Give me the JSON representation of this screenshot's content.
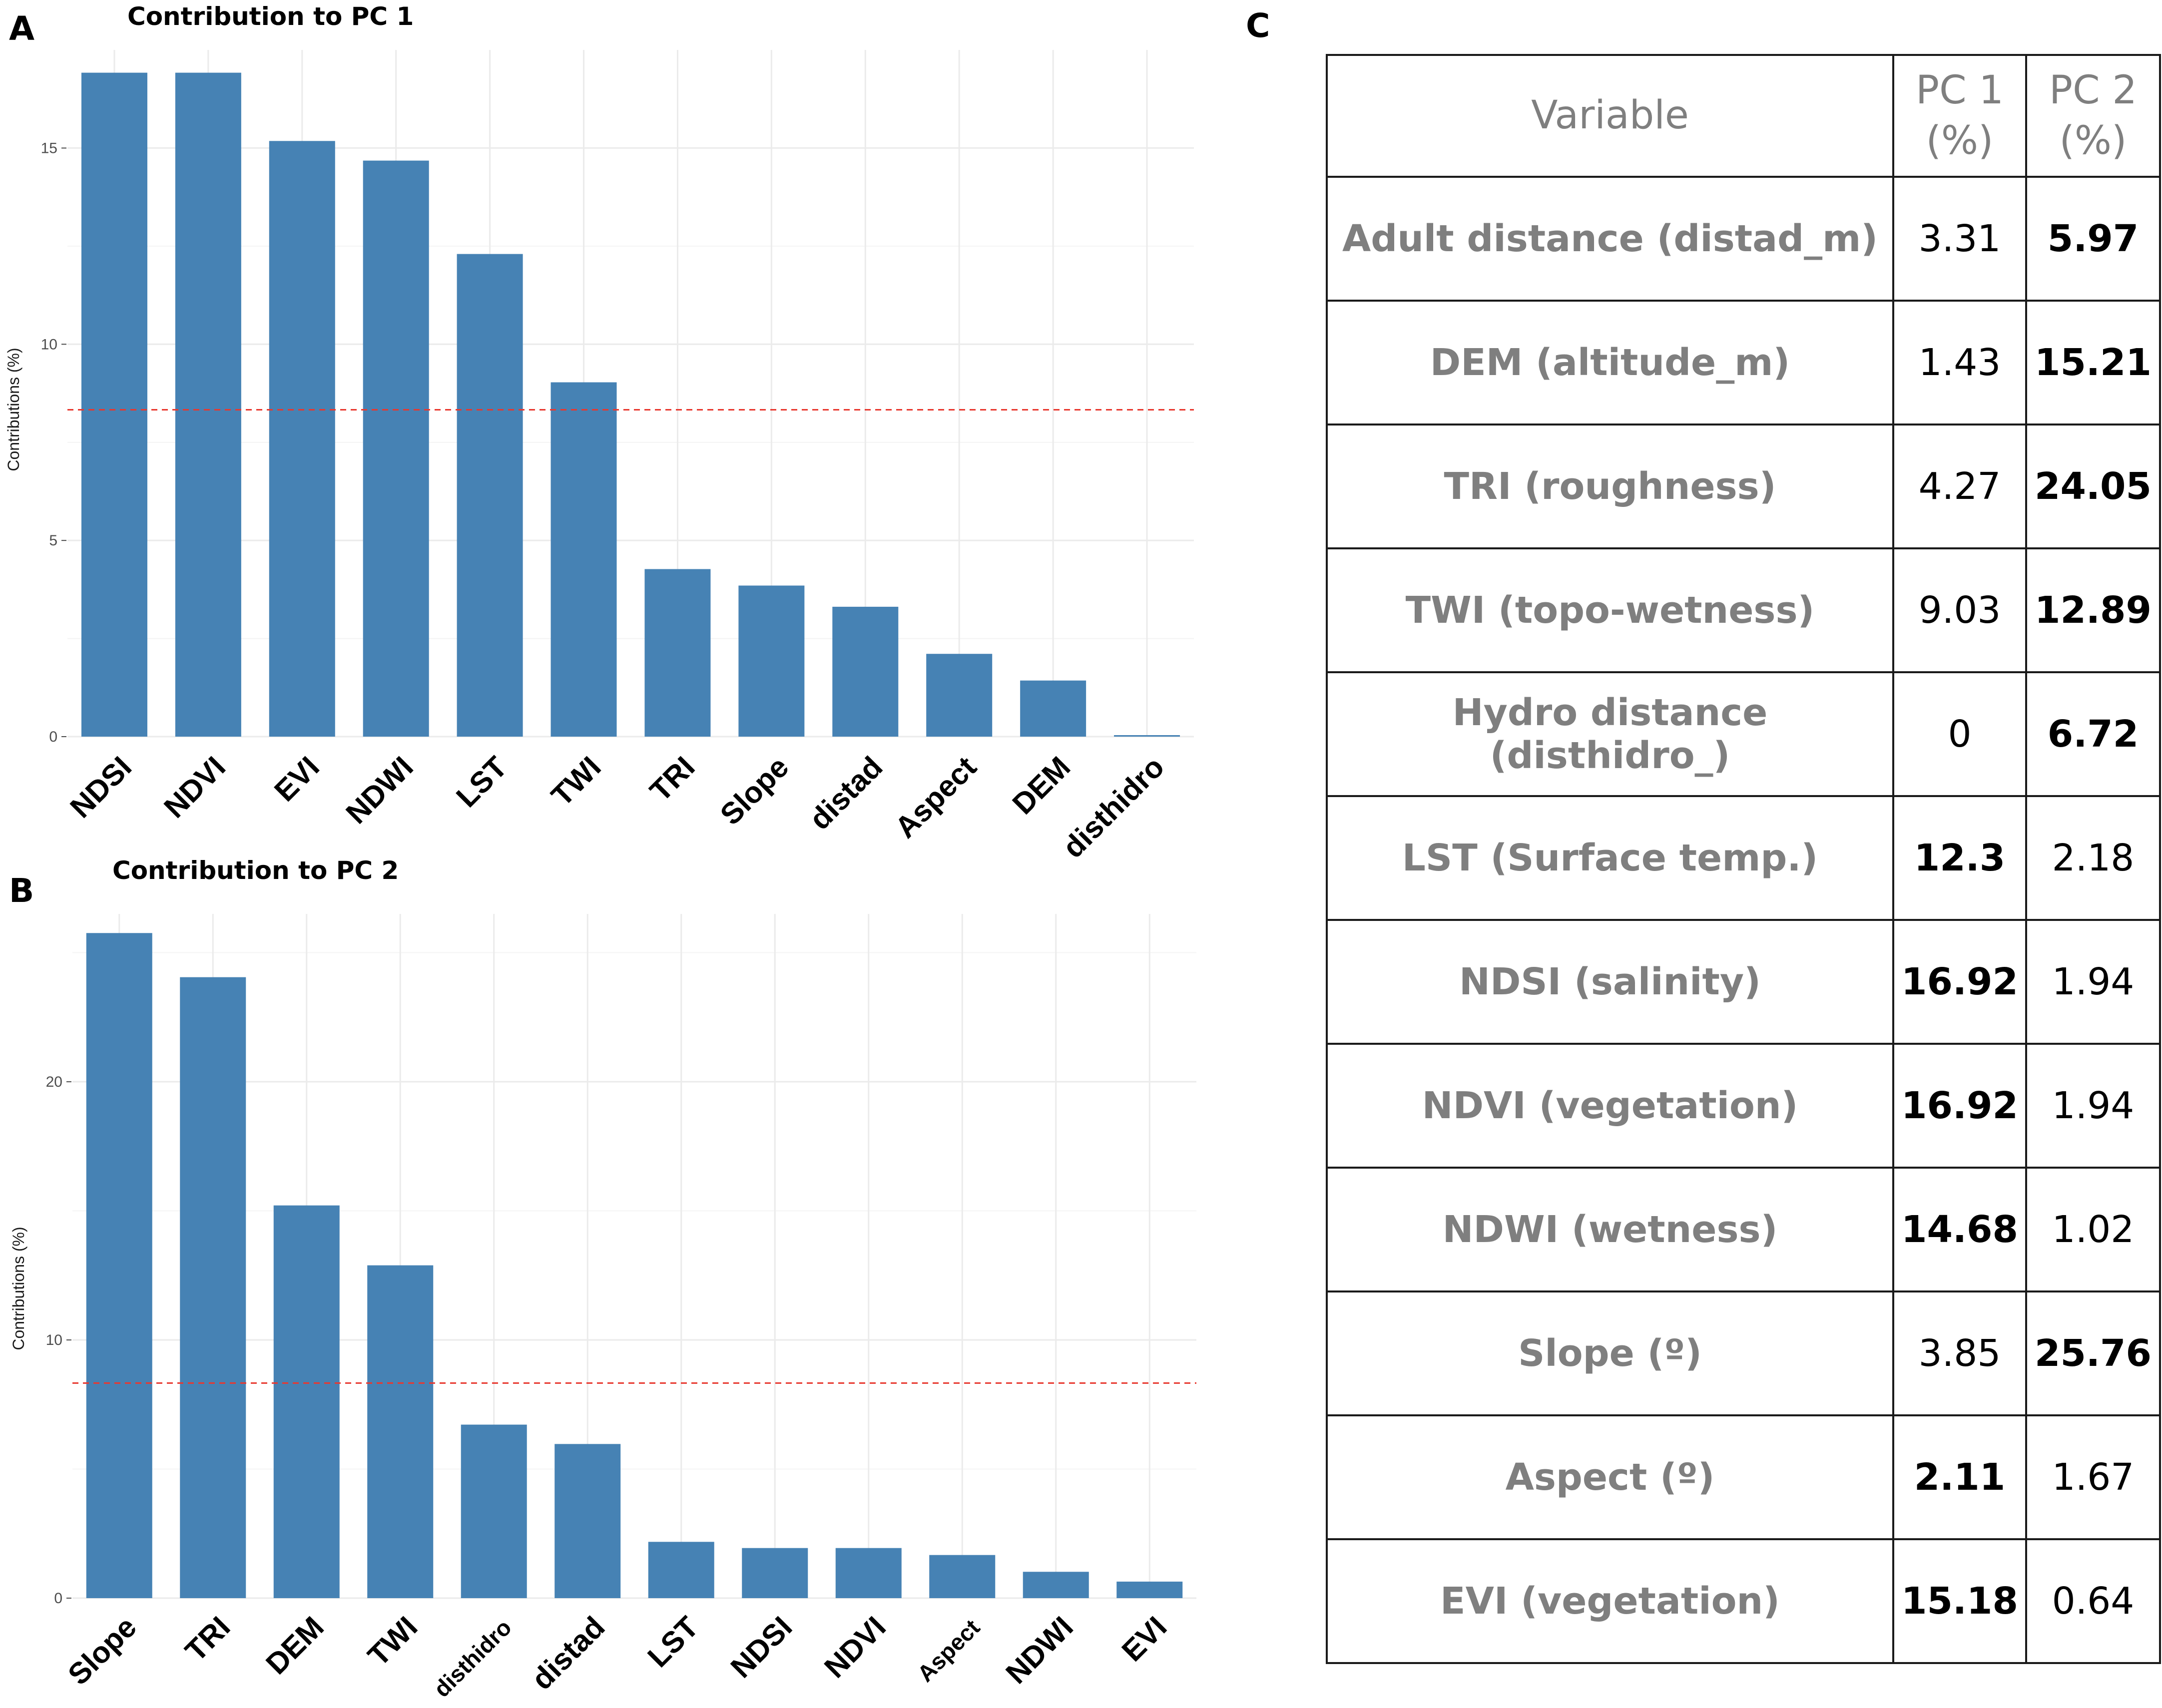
{
  "panels": {
    "a_label": "A",
    "b_label": "B",
    "c_label": "C"
  },
  "colors": {
    "bar": "#4682b4",
    "reference_line": "#e8382f"
  },
  "chart_data": [
    {
      "type": "bar",
      "title": "Contribution to PC 1",
      "xlabel": "",
      "ylabel": "Contributions (%)",
      "categories": [
        "NDSI",
        "NDVI",
        "EVI",
        "NDWI",
        "LST",
        "TWI",
        "TRI",
        "Slope",
        "distad",
        "Aspect",
        "DEM",
        "disthidro"
      ],
      "values": [
        16.92,
        16.92,
        15.18,
        14.68,
        12.3,
        9.03,
        4.27,
        3.85,
        3.31,
        2.11,
        1.43,
        0
      ],
      "ylim": [
        0,
        17.5
      ],
      "yticks": [
        0,
        5,
        10,
        15
      ],
      "reference_line": 8.33,
      "grid": true
    },
    {
      "type": "bar",
      "title": "Contribution to PC 2",
      "xlabel": "",
      "ylabel": "Contributions (%)",
      "categories": [
        "Slope",
        "TRI",
        "DEM",
        "TWI",
        "disthidro",
        "distad",
        "LST",
        "NDSI",
        "NDVI",
        "Aspect",
        "NDWI",
        "EVI"
      ],
      "values": [
        25.76,
        24.05,
        15.21,
        12.89,
        6.72,
        5.97,
        2.18,
        1.94,
        1.94,
        1.67,
        1.02,
        0.64
      ],
      "ylim": [
        0,
        26.5
      ],
      "yticks": [
        0,
        10,
        20
      ],
      "reference_line": 8.33,
      "grid": true
    }
  ],
  "table": {
    "headers": [
      "Variable",
      "PC 1 (%)",
      "PC 2 (%)"
    ],
    "rows": [
      {
        "variable": "Adult distance (distad_m)",
        "pc1": "3.31",
        "pc2": "5.97",
        "bold": "pc2"
      },
      {
        "variable": "DEM (altitude_m)",
        "pc1": "1.43",
        "pc2": "15.21",
        "bold": "pc2"
      },
      {
        "variable": "TRI (roughness)",
        "pc1": "4.27",
        "pc2": "24.05",
        "bold": "pc2"
      },
      {
        "variable": "TWI (topo-wetness)",
        "pc1": "9.03",
        "pc2": "12.89",
        "bold": "pc2"
      },
      {
        "variable": "Hydro distance (disthidro_)",
        "pc1": "0",
        "pc2": "6.72",
        "bold": "pc2"
      },
      {
        "variable": "LST (Surface temp.)",
        "pc1": "12.3",
        "pc2": "2.18",
        "bold": "pc1"
      },
      {
        "variable": "NDSI (salinity)",
        "pc1": "16.92",
        "pc2": "1.94",
        "bold": "pc1"
      },
      {
        "variable": "NDVI (vegetation)",
        "pc1": "16.92",
        "pc2": "1.94",
        "bold": "pc1"
      },
      {
        "variable": "NDWI (wetness)",
        "pc1": "14.68",
        "pc2": "1.02",
        "bold": "pc1"
      },
      {
        "variable": "Slope (º)",
        "pc1": "3.85",
        "pc2": "25.76",
        "bold": "pc2"
      },
      {
        "variable": "Aspect (º)",
        "pc1": "2.11",
        "pc2": "1.67",
        "bold": "pc1"
      },
      {
        "variable": "EVI (vegetation)",
        "pc1": "15.18",
        "pc2": "0.64",
        "bold": "pc1"
      }
    ]
  }
}
